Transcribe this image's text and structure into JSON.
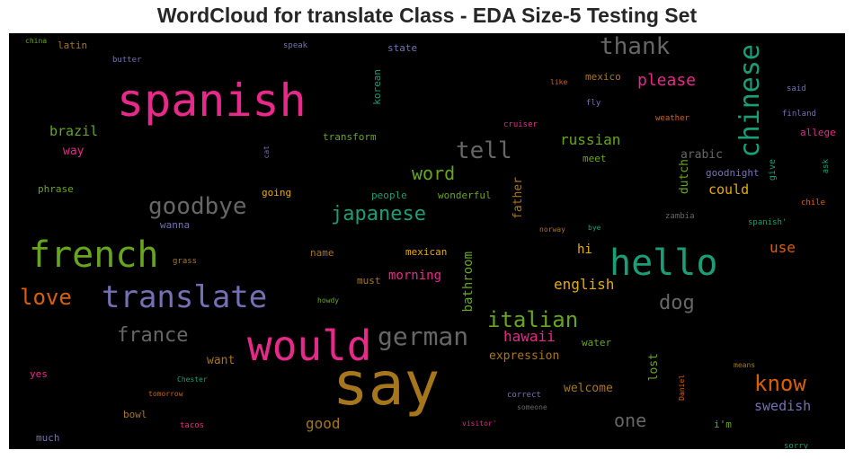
{
  "title": "WordCloud for translate Class - EDA Size-5 Testing Set",
  "words": [
    {
      "text": "say",
      "color": "#a6761d"
    },
    {
      "text": "spanish",
      "color": "#e7298a"
    },
    {
      "text": "would",
      "color": "#e7298a"
    },
    {
      "text": "hello",
      "color": "#1b9e77"
    },
    {
      "text": "french",
      "color": "#66a61e"
    },
    {
      "text": "translate",
      "color": "#7570b3"
    },
    {
      "text": "chinese",
      "color": "#1b9e77"
    },
    {
      "text": "german",
      "color": "#666666"
    },
    {
      "text": "goodbye",
      "color": "#666666"
    },
    {
      "text": "tell",
      "color": "#666666"
    },
    {
      "text": "thank",
      "color": "#666666"
    },
    {
      "text": "japanese",
      "color": "#1b9e77"
    },
    {
      "text": "italian",
      "color": "#66a61e"
    },
    {
      "text": "love",
      "color": "#d95f02"
    },
    {
      "text": "know",
      "color": "#d95f02"
    },
    {
      "text": "france",
      "color": "#666666"
    },
    {
      "text": "dog",
      "color": "#666666"
    },
    {
      "text": "word",
      "color": "#66a61e"
    },
    {
      "text": "one",
      "color": "#666666"
    },
    {
      "text": "please",
      "color": "#e7298a"
    },
    {
      "text": "russian",
      "color": "#66a61e"
    },
    {
      "text": "english",
      "color": "#e6ab02"
    },
    {
      "text": "hawaii",
      "color": "#e7298a"
    },
    {
      "text": "good",
      "color": "#a6761d"
    },
    {
      "text": "could",
      "color": "#e6ab02"
    },
    {
      "text": "brazil",
      "color": "#66a61e"
    },
    {
      "text": "use",
      "color": "#d95f02"
    },
    {
      "text": "swedish",
      "color": "#7570b3"
    },
    {
      "text": "bathroom",
      "color": "#66a61e"
    },
    {
      "text": "arabic",
      "color": "#666666"
    },
    {
      "text": "dutch",
      "color": "#66a61e"
    },
    {
      "text": "father",
      "color": "#a6761d"
    },
    {
      "text": "lost",
      "color": "#66a61e"
    },
    {
      "text": "hi",
      "color": "#e6ab02"
    },
    {
      "text": "morning",
      "color": "#e7298a"
    },
    {
      "text": "expression",
      "color": "#a6761d"
    },
    {
      "text": "welcome",
      "color": "#a6761d"
    },
    {
      "text": "want",
      "color": "#a6761d"
    },
    {
      "text": "way",
      "color": "#e7298a"
    },
    {
      "text": "latin",
      "color": "#a6761d"
    },
    {
      "text": "state",
      "color": "#7570b3"
    },
    {
      "text": "korean",
      "color": "#1b9e77"
    },
    {
      "text": "mexico",
      "color": "#a6761d"
    },
    {
      "text": "transform",
      "color": "#66a61e"
    },
    {
      "text": "meet",
      "color": "#66a61e"
    },
    {
      "text": "phrase",
      "color": "#66a61e"
    },
    {
      "text": "going",
      "color": "#e6ab02"
    },
    {
      "text": "people",
      "color": "#1b9e77"
    },
    {
      "text": "wonderful",
      "color": "#66a61e"
    },
    {
      "text": "goodnight",
      "color": "#7570b3"
    },
    {
      "text": "give",
      "color": "#1b9e77"
    },
    {
      "text": "allege",
      "color": "#e7298a"
    },
    {
      "text": "name",
      "color": "#a6761d"
    },
    {
      "text": "mexican",
      "color": "#e6ab02"
    },
    {
      "text": "must",
      "color": "#a6761d"
    },
    {
      "text": "water",
      "color": "#66a61e"
    },
    {
      "text": "i'm",
      "color": "#66a61e"
    },
    {
      "text": "much",
      "color": "#7570b3"
    },
    {
      "text": "yes",
      "color": "#e7298a"
    },
    {
      "text": "bowl",
      "color": "#a6761d"
    },
    {
      "text": "wanna",
      "color": "#7570b3"
    },
    {
      "text": "speak",
      "color": "#7570b3"
    },
    {
      "text": "butter",
      "color": "#7570b3"
    },
    {
      "text": "china",
      "color": "#66a61e"
    },
    {
      "text": "cat",
      "color": "#7570b3"
    },
    {
      "text": "like",
      "color": "#d95f02"
    },
    {
      "text": "fly",
      "color": "#7570b3"
    },
    {
      "text": "cruiser",
      "color": "#e7298a"
    },
    {
      "text": "weather",
      "color": "#d95f02"
    },
    {
      "text": "said",
      "color": "#7570b3"
    },
    {
      "text": "finland",
      "color": "#7570b3"
    },
    {
      "text": "ask",
      "color": "#1b9e77"
    },
    {
      "text": "chile",
      "color": "#d95f02"
    },
    {
      "text": "spanish'",
      "color": "#1b9e77"
    },
    {
      "text": "zambia",
      "color": "#666666"
    },
    {
      "text": "bye",
      "color": "#1b9e77"
    },
    {
      "text": "norway",
      "color": "#a6761d"
    },
    {
      "text": "grass",
      "color": "#a6761d"
    },
    {
      "text": "howdy",
      "color": "#66a61e"
    },
    {
      "text": "means",
      "color": "#a6761d"
    },
    {
      "text": "Daniel",
      "color": "#d95f02"
    },
    {
      "text": "Chester",
      "color": "#1b9e77"
    },
    {
      "text": "tomorrow",
      "color": "#d95f02"
    },
    {
      "text": "correct",
      "color": "#7570b3"
    },
    {
      "text": "someone",
      "color": "#666666"
    },
    {
      "text": "tacos",
      "color": "#e7298a"
    },
    {
      "text": "visitor'",
      "color": "#e7298a"
    },
    {
      "text": "sorry",
      "color": "#1b9e77"
    }
  ]
}
